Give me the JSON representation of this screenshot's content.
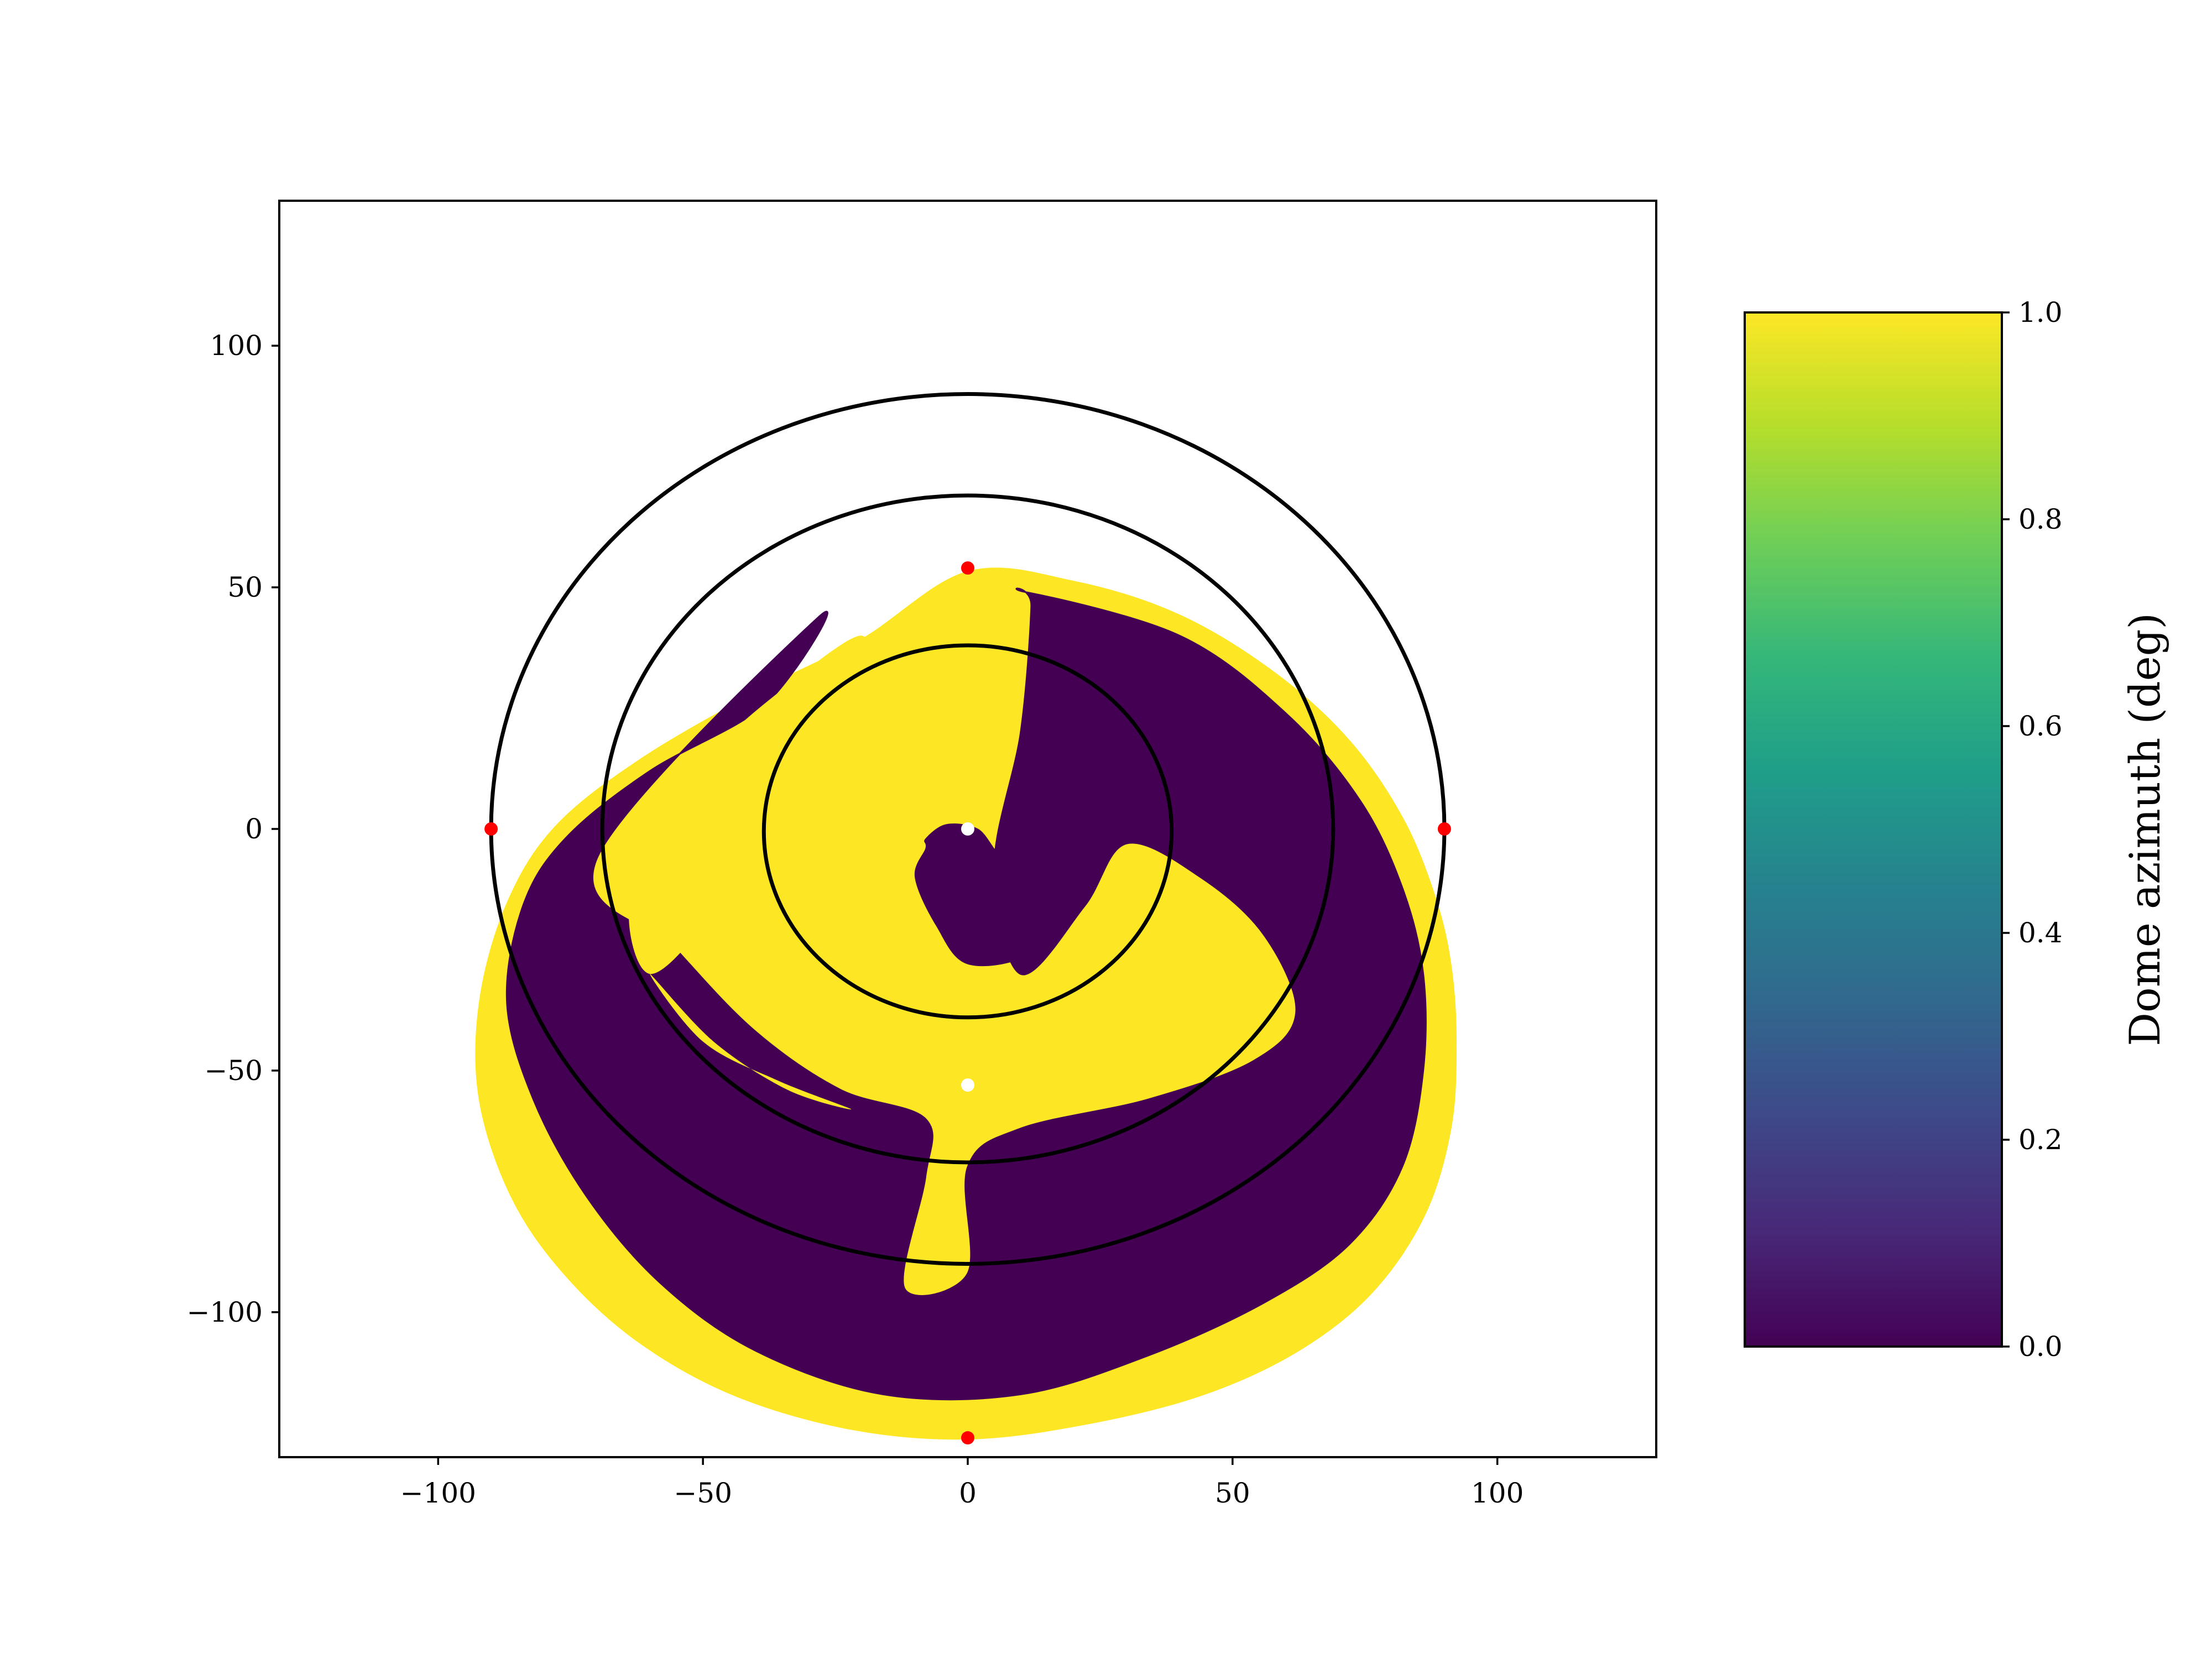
{
  "chart_data": [
    {
      "type": "scatter",
      "title": "",
      "xlabel": "",
      "ylabel": "",
      "xlim": [
        -130,
        130
      ],
      "ylim": [
        -130,
        130
      ],
      "x_ticks": [
        -100,
        -50,
        0,
        50,
        100
      ],
      "y_ticks": [
        -100,
        -50,
        0,
        50,
        100
      ],
      "x_tick_labels": [
        "−100",
        "−50",
        "0",
        "50",
        "100"
      ],
      "y_tick_labels": [
        "−100",
        "−50",
        "0",
        "50",
        "100"
      ],
      "grid": false,
      "colormap": "viridis",
      "colors": {
        "low": "#440154",
        "high": "#fde725",
        "rings": "#000000",
        "poles": "#ff0000",
        "zenith": "#ffffff"
      },
      "binary_values": [
        0,
        1
      ],
      "footprint": {
        "outer_boundary": [
          [
            0,
            53
          ],
          [
            20,
            51
          ],
          [
            40,
            44
          ],
          [
            58,
            32
          ],
          [
            72,
            18
          ],
          [
            82,
            2
          ],
          [
            88,
            -14
          ],
          [
            91,
            -28
          ],
          [
            92,
            -44
          ],
          [
            91,
            -62
          ],
          [
            86,
            -80
          ],
          [
            76,
            -96
          ],
          [
            62,
            -108
          ],
          [
            44,
            -117
          ],
          [
            22,
            -123
          ],
          [
            0,
            -126
          ],
          [
            -22,
            -124
          ],
          [
            -44,
            -117
          ],
          [
            -62,
            -106
          ],
          [
            -76,
            -92
          ],
          [
            -86,
            -76
          ],
          [
            -92,
            -56
          ],
          [
            -92,
            -36
          ],
          [
            -87,
            -16
          ],
          [
            -78,
            0
          ],
          [
            -62,
            14
          ],
          [
            -40,
            28
          ],
          [
            -20,
            39
          ]
        ],
        "low_boundary": [
          [
            11,
            49
          ],
          [
            40,
            40
          ],
          [
            60,
            24
          ],
          [
            74,
            6
          ],
          [
            82,
            -12
          ],
          [
            86,
            -30
          ],
          [
            86,
            -50
          ],
          [
            82,
            -70
          ],
          [
            72,
            -86
          ],
          [
            56,
            -98
          ],
          [
            34,
            -109
          ],
          [
            10,
            -117
          ],
          [
            -16,
            -117
          ],
          [
            -40,
            -108
          ],
          [
            -58,
            -94
          ],
          [
            -72,
            -76
          ],
          [
            -82,
            -56
          ],
          [
            -87,
            -36
          ],
          [
            -84,
            -16
          ],
          [
            -76,
            -2
          ],
          [
            -60,
            12
          ],
          [
            -38,
            26
          ],
          [
            -28,
            44
          ],
          [
            -70,
            -6
          ],
          [
            -55,
            -25
          ],
          [
            -40,
            -42
          ],
          [
            -24,
            -54
          ],
          [
            -8,
            -60
          ],
          [
            -8,
            -72
          ],
          [
            -12,
            -95
          ],
          [
            0,
            -92
          ],
          [
            0,
            -70
          ],
          [
            10,
            -62
          ],
          [
            34,
            -56
          ],
          [
            54,
            -48
          ],
          [
            62,
            -38
          ],
          [
            56,
            -22
          ],
          [
            44,
            -10
          ],
          [
            30,
            -3
          ],
          [
            22,
            -16
          ],
          [
            10,
            -30
          ],
          [
            5,
            -8
          ],
          [
            10,
            20
          ],
          [
            12,
            46
          ]
        ],
        "high_bands": [
          [
            [
              -20,
              40
            ],
            [
              -36,
              28
            ],
            [
              -50,
              14
            ],
            [
              -60,
              -2
            ],
            [
              -64,
              -18
            ],
            [
              -60,
              -30
            ],
            [
              -50,
              -20
            ],
            [
              -42,
              -4
            ],
            [
              -32,
              12
            ],
            [
              -22,
              26
            ]
          ],
          [
            [
              -50,
              -20
            ],
            [
              -40,
              -34
            ],
            [
              -26,
              -46
            ],
            [
              -12,
              -52
            ],
            [
              -4,
              -54
            ],
            [
              -14,
              -48
            ],
            [
              -30,
              -40
            ],
            [
              -42,
              -30
            ]
          ],
          [
            [
              -60,
              -30
            ],
            [
              -50,
              -44
            ],
            [
              -36,
              -52
            ],
            [
              -22,
              -58
            ],
            [
              -34,
              -54
            ],
            [
              -48,
              -44
            ]
          ]
        ],
        "low_core": [
          [
            -8,
            -2
          ],
          [
            -4,
            1
          ],
          [
            2,
            0
          ],
          [
            6,
            -5
          ],
          [
            8,
            -1
          ],
          [
            12,
            -4
          ],
          [
            18,
            -12
          ],
          [
            22,
            -16
          ],
          [
            12,
            -26
          ],
          [
            0,
            -28
          ],
          [
            -6,
            -20
          ],
          [
            -10,
            -10
          ],
          [
            -8,
            -4
          ]
        ]
      },
      "series": [
        {
          "kind": "ring",
          "cx": 0,
          "cy": 0,
          "r": 90
        },
        {
          "kind": "ring",
          "cx": 0,
          "cy": 0,
          "r": 69
        },
        {
          "kind": "ring",
          "cx": 0,
          "cy": -0.5,
          "r": 38.5
        },
        {
          "kind": "points",
          "color": "#ff0000",
          "x": [
            0,
            -90,
            90,
            0
          ],
          "y": [
            54,
            0,
            0,
            -126
          ]
        },
        {
          "kind": "points",
          "color": "#ffffff",
          "x": [
            0,
            0
          ],
          "y": [
            0,
            -53
          ]
        }
      ]
    },
    {
      "type": "heatmap",
      "colorbar_label": "Dome azimuth (deg)",
      "range": [
        0.0,
        1.0
      ],
      "ticks": [
        0.0,
        0.2,
        0.4,
        0.6,
        0.8,
        1.0
      ],
      "tick_labels": [
        "0.0",
        "0.2",
        "0.4",
        "0.6",
        "0.8",
        "1.0"
      ],
      "colormap_stops": [
        "#440154",
        "#482878",
        "#3e4989",
        "#31688e",
        "#26828e",
        "#1f9e89",
        "#35b779",
        "#6ece58",
        "#b5de2b",
        "#fde725"
      ]
    }
  ]
}
